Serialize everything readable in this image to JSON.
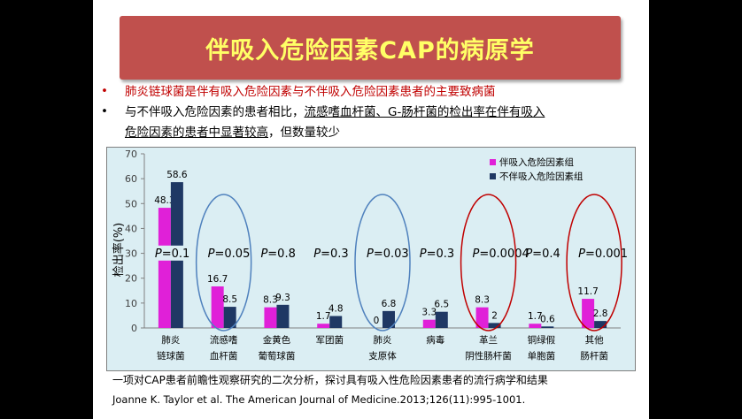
{
  "slide": {
    "title": "伴吸入危险因素CAP的病原学",
    "bullets": [
      {
        "marker": "•",
        "text": "肺炎链球菌是伴有吸入危险因素与不伴吸入危险因素患者的主要致病菌"
      },
      {
        "marker": "•",
        "segments": [
          {
            "text": "与不伴吸入危险因素的患者相比，",
            "underline": false
          },
          {
            "text": "流感嗜血杆菌、G-肠杆菌的检出率在伴有吸入",
            "underline": true
          }
        ]
      },
      {
        "segments": [
          {
            "text": "危险因素的患者中显著较高",
            "underline": true
          },
          {
            "text": "，但数量较少",
            "underline": false
          }
        ]
      }
    ],
    "footnote": "一项对CAP患者前瞻性观察研究的二次分析，探讨具有吸入性危险因素患者的流行病学和结果",
    "citation": "Joanne K. Taylor et al. The American Journal of Medicine.2013;126(11):995-1001."
  },
  "colors": {
    "title_bg": "#c0504d",
    "title_text": "#ffff66",
    "bullet1_text": "#c00000",
    "chart_bg": "#dbeef3",
    "series_with": "#e020d8",
    "series_without": "#1f3864",
    "circle_blue": "#4f81bd",
    "circle_red": "#c00000"
  },
  "chart_data": {
    "type": "bar",
    "ylabel": "检出率(%)",
    "ylim": [
      0,
      70
    ],
    "yticks": [
      0,
      10,
      20,
      30,
      40,
      50,
      60,
      70
    ],
    "legend_position": "top-right",
    "categories": [
      [
        "肺炎",
        "链球菌"
      ],
      [
        "流感嗜",
        "血杆菌"
      ],
      [
        "金黄色",
        "葡萄球菌"
      ],
      [
        "军团菌"
      ],
      [
        "肺炎",
        "支原体"
      ],
      [
        "病毒"
      ],
      [
        "革兰",
        "阴性肠杆菌"
      ],
      [
        "铜绿假",
        "单胞菌"
      ],
      [
        "其他",
        "肠杆菌"
      ]
    ],
    "series": [
      {
        "name": "伴吸入危险因素组",
        "values": [
          48.3,
          16.7,
          8.3,
          1.7,
          0,
          3.3,
          8.3,
          1.7,
          11.7
        ]
      },
      {
        "name": "不伴吸入危险因素组",
        "values": [
          58.6,
          8.5,
          9.3,
          4.8,
          6.8,
          6.5,
          2,
          0.6,
          2.8
        ]
      }
    ],
    "p_values": [
      {
        "prefix": "P",
        "value": "=0.1"
      },
      {
        "prefix": "P",
        "value": "=0.05"
      },
      {
        "prefix": "P",
        "value": "=0.8"
      },
      {
        "prefix": "P",
        "value": "=0.3"
      },
      {
        "prefix": "P",
        "value": "=0.03"
      },
      {
        "prefix": "P",
        "value": "=0.3"
      },
      {
        "prefix": "P",
        "value": "=0.0004"
      },
      {
        "prefix": "P",
        "value": "=0.4"
      },
      {
        "prefix": "P",
        "value": "=0.001"
      }
    ],
    "highlight_circles": [
      {
        "category_index": 1,
        "color": "blue"
      },
      {
        "category_index": 4,
        "color": "blue"
      },
      {
        "category_index": 6,
        "color": "red"
      },
      {
        "category_index": 8,
        "color": "red"
      }
    ]
  }
}
